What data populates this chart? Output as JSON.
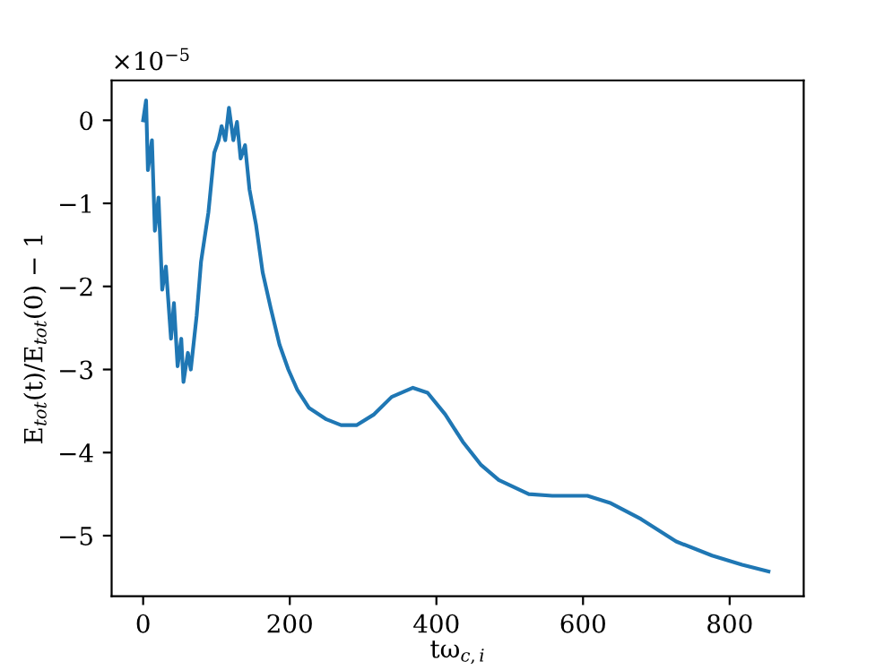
{
  "chart_data": {
    "type": "line",
    "xlabel": "tω$_{c,i}$",
    "ylabel": "E$_{tot}$(t)/E$_{tot}$(0) − 1",
    "annotations": [
      "×10$^{−5}$"
    ],
    "xlim": [
      -43,
      901
    ],
    "ylim": [
      -5.73,
      0.48
    ],
    "xticks": [
      0,
      200,
      400,
      600,
      800
    ],
    "yticks": [
      0,
      {
        "value": -1,
        "label": "−1"
      },
      {
        "value": -2,
        "label": "−2"
      },
      {
        "value": -3,
        "label": "−3"
      },
      {
        "value": -4,
        "label": "−4"
      },
      {
        "value": -5,
        "label": "−5"
      }
    ],
    "grid": false,
    "legend": false,
    "series": [
      {
        "color": "#1f77b4",
        "x": [
          0,
          4,
          6.5,
          12,
          16,
          21,
          26,
          31,
          38,
          42,
          47,
          52,
          55,
          61,
          65,
          73,
          79,
          89,
          97,
          103,
          107,
          112,
          117,
          123,
          128,
          133,
          139,
          145,
          154,
          163,
          174,
          186,
          198,
          210,
          226,
          250,
          270,
          291,
          315,
          339,
          368,
          388,
          412,
          436,
          461,
          485,
          526,
          558,
          606,
          638,
          679,
          727,
          776,
          817,
          853
        ],
        "values": [
          0.0,
          0.24,
          -0.6,
          -0.24,
          -1.33,
          -0.93,
          -2.04,
          -1.76,
          -2.63,
          -2.2,
          -2.96,
          -2.63,
          -3.15,
          -2.8,
          -3.0,
          -2.35,
          -1.7,
          -1.11,
          -0.39,
          -0.24,
          -0.07,
          -0.24,
          0.15,
          -0.24,
          -0.02,
          -0.46,
          -0.3,
          -0.83,
          -1.26,
          -1.83,
          -2.26,
          -2.7,
          -3.0,
          -3.24,
          -3.46,
          -3.6,
          -3.67,
          -3.67,
          -3.54,
          -3.33,
          -3.22,
          -3.28,
          -3.54,
          -3.87,
          -4.15,
          -4.33,
          -4.5,
          -4.52,
          -4.52,
          -4.61,
          -4.8,
          -5.07,
          -5.24,
          -5.35,
          -5.43
        ]
      }
    ]
  }
}
